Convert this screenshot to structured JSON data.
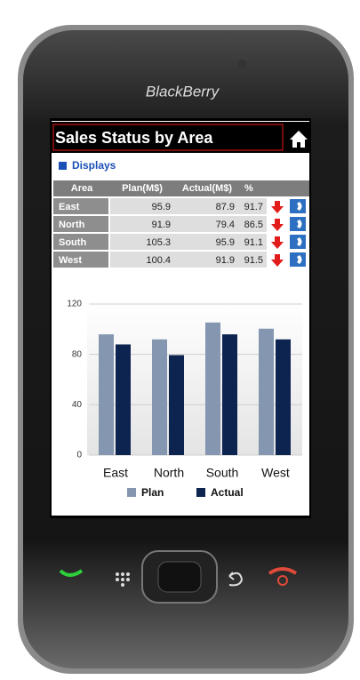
{
  "device": {
    "brand": "BlackBerry"
  },
  "header": {
    "title": "Sales Status by Area"
  },
  "section": {
    "label": "Displays"
  },
  "table": {
    "columns": [
      "Area",
      "Plan(M$)",
      "Actual(M$)",
      "%"
    ],
    "rows": [
      [
        "East",
        95.9,
        87.9,
        91.7
      ],
      [
        "North",
        91.9,
        79.4,
        86.5
      ],
      [
        "South",
        105.3,
        95.9,
        91.1
      ],
      [
        "West",
        100.4,
        91.9,
        91.5
      ]
    ]
  },
  "chart_data": {
    "type": "bar",
    "categories": [
      "East",
      "North",
      "South",
      "West"
    ],
    "series": [
      {
        "name": "Plan",
        "color": "#8496b0",
        "values": [
          95.9,
          91.9,
          105.3,
          100.4
        ]
      },
      {
        "name": "Actual",
        "color": "#0d2350",
        "values": [
          87.9,
          79.4,
          95.9,
          91.9
        ]
      }
    ],
    "ylim": [
      0,
      120
    ],
    "yticks": [
      0,
      40,
      80,
      120
    ],
    "grid": true,
    "legend": "bottom"
  }
}
